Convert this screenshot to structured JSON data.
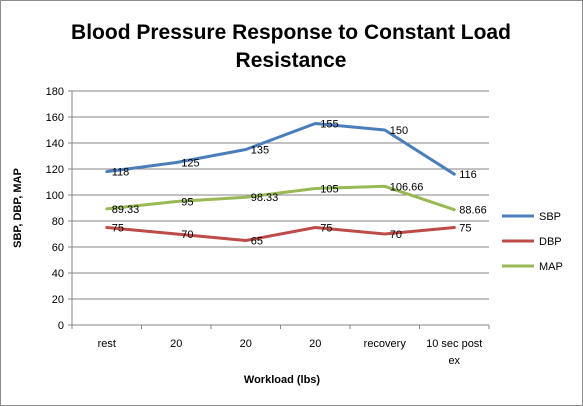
{
  "chart_data": {
    "type": "line",
    "title_lines": [
      "Blood Pressure Response to Constant Load",
      "Resistance"
    ],
    "xlabel": "Workload (lbs)",
    "ylabel": "SBP, DBP, MAP",
    "categories": [
      "rest",
      "20",
      "20",
      "20",
      "recovery",
      "10 sec post ex"
    ],
    "category_lines": [
      [
        "rest"
      ],
      [
        "20"
      ],
      [
        "20"
      ],
      [
        "20"
      ],
      [
        "recovery"
      ],
      [
        "10 sec post",
        "ex"
      ]
    ],
    "ylim": [
      0,
      180
    ],
    "yticks": [
      0,
      20,
      40,
      60,
      80,
      100,
      120,
      140,
      160,
      180
    ],
    "grid": true,
    "legend_position": "right",
    "series": [
      {
        "name": "SBP",
        "color": "#4a7ebb",
        "values": [
          118,
          125,
          135,
          155,
          150,
          116
        ],
        "labels": [
          "118",
          "125",
          "135",
          "155",
          "150",
          "116"
        ]
      },
      {
        "name": "DBP",
        "color": "#be4b48",
        "values": [
          75,
          70,
          65,
          75,
          70,
          75
        ],
        "labels": [
          "75",
          "70",
          "65",
          "75",
          "70",
          "75"
        ]
      },
      {
        "name": "MAP",
        "color": "#98b954",
        "values": [
          89.33,
          95,
          98.33,
          105,
          106.66,
          88.66
        ],
        "labels": [
          "89.33",
          "95",
          "98.33",
          "105",
          "106.66",
          "88.66"
        ]
      }
    ]
  }
}
